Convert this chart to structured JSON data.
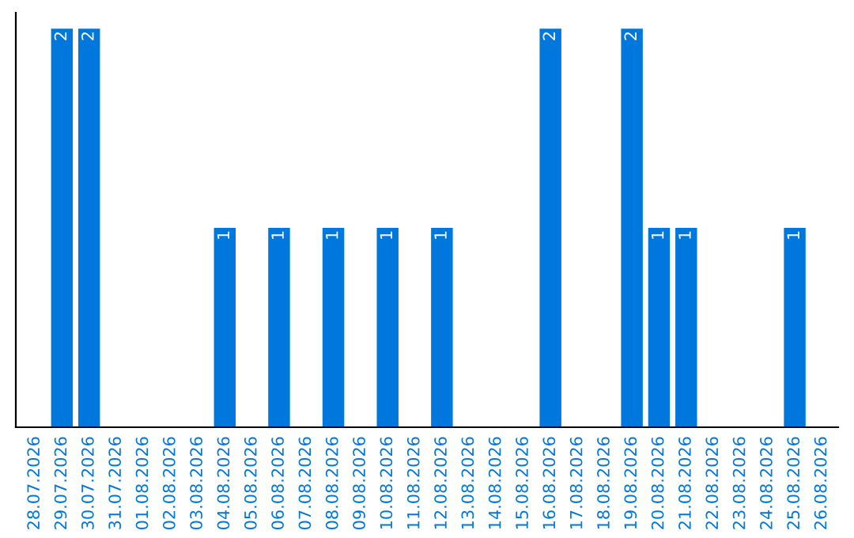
{
  "chart_data": {
    "type": "bar",
    "categories": [
      "28.07.2026",
      "29.07.2026",
      "30.07.2026",
      "31.07.2026",
      "01.08.2026",
      "02.08.2026",
      "03.08.2026",
      "04.08.2026",
      "05.08.2026",
      "06.08.2026",
      "07.08.2026",
      "08.08.2026",
      "09.08.2026",
      "10.08.2026",
      "11.08.2026",
      "12.08.2026",
      "13.08.2026",
      "14.08.2026",
      "15.08.2026",
      "16.08.2026",
      "17.08.2026",
      "18.08.2026",
      "19.08.2026",
      "20.08.2026",
      "21.08.2026",
      "22.08.2026",
      "23.08.2026",
      "24.08.2026",
      "25.08.2026",
      "26.08.2026"
    ],
    "values": [
      0,
      2,
      2,
      0,
      0,
      0,
      0,
      1,
      0,
      1,
      0,
      1,
      0,
      1,
      0,
      1,
      0,
      0,
      0,
      2,
      0,
      0,
      2,
      1,
      1,
      0,
      0,
      0,
      1,
      0
    ],
    "value_labels": [
      null,
      "2",
      "2",
      null,
      null,
      null,
      null,
      "1",
      null,
      "1",
      null,
      "1",
      null,
      "1",
      null,
      "1",
      null,
      null,
      null,
      "2",
      null,
      null,
      "2",
      "1",
      "1",
      null,
      null,
      null,
      "1",
      null
    ],
    "color": "#0077dd",
    "grid": false,
    "legend": false
  }
}
